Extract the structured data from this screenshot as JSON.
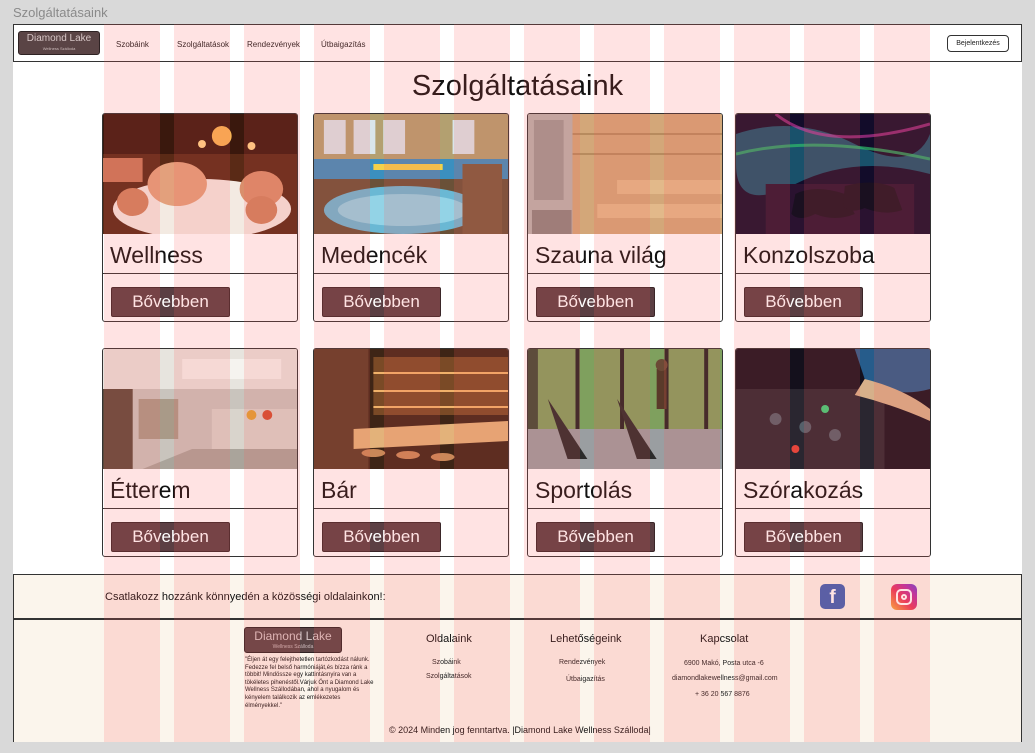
{
  "frame_label": "Szolgáltatásaink",
  "header": {
    "logo_text": "Diamond Lake",
    "logo_sub": "Wellness Szálloda",
    "nav": [
      "Szobáink",
      "Szolgáltatások",
      "Rendezvények",
      "Útbaigazítás"
    ],
    "login_label": "Bejelentkezés"
  },
  "main": {
    "title": "Szolgáltatásaink",
    "more_label": "Bővebben",
    "cards": [
      {
        "name": "Wellness",
        "image": "massage-photo"
      },
      {
        "name": "Medencék",
        "image": "pool-photo"
      },
      {
        "name": "Szauna világ",
        "image": "sauna-photo"
      },
      {
        "name": "Konzolszoba",
        "image": "gaming-controller-photo"
      },
      {
        "name": "Étterem",
        "image": "restaurant-photo"
      },
      {
        "name": "Bár",
        "image": "bar-photo"
      },
      {
        "name": "Sportolás",
        "image": "gym-photo"
      },
      {
        "name": "Szórakozás",
        "image": "dj-mixer-photo"
      }
    ]
  },
  "social": {
    "text": "Csatlakozz hozzánk könnyedén a közösségi oldalainkon!:",
    "icons": [
      "facebook-icon",
      "instagram-icon"
    ]
  },
  "footer": {
    "logo_text": "Diamond Lake",
    "logo_sub": "Wellness Szálloda",
    "quote": "\"Éljen át egy felejthetetlen tartózkodást nálunk. Fedezze fel belső harmóniáját,és bízza ránk a többit! Mindössze egy kattintásnyira van a tökéletes pihenéstől.Várjuk Önt a Diamond Lake Wellness Szállodában, ahol a nyugalom és kényelem találkozik az emlékezetes élményekkel.\"",
    "pages_title": "Oldalaink",
    "pages": [
      "Szobáink",
      "Szolgáltatások"
    ],
    "options_title": "Lehetőségeink",
    "options": [
      "Rendezvények",
      "Útbaigazítás"
    ],
    "contact_title": "Kapcsolat",
    "contact": [
      "6900 Makó, Posta  utca -6",
      "diamondlakewellness@gmail.com",
      "+ 36 20 567 8876"
    ],
    "copyright": "© 2024 Minden jog fenntartva. |Diamond Lake Wellness Szálloda|"
  },
  "colors": {
    "button": "#5b3f43",
    "logo_bg": "#5a4445",
    "footer_bg": "#fbf5ec",
    "grid_overlay": "#ff5a5a"
  }
}
